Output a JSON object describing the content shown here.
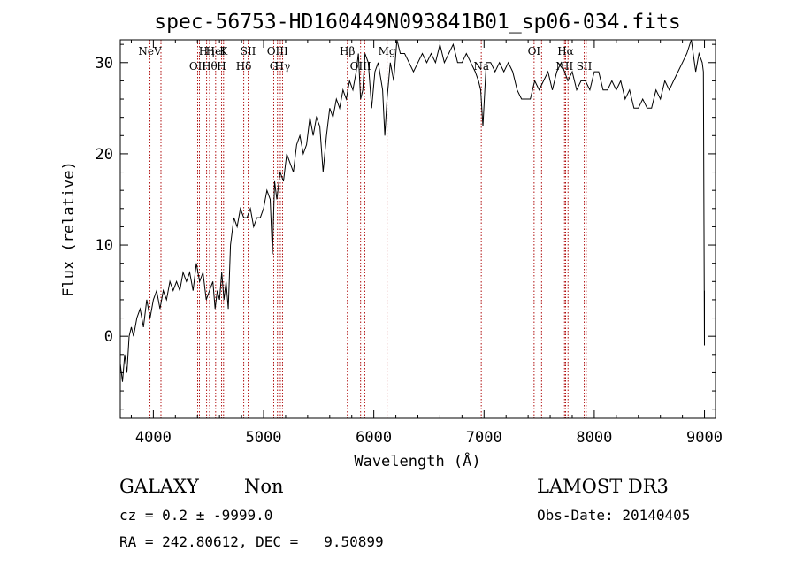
{
  "chart_data": {
    "type": "line",
    "title": "spec-56753-HD160449N093841B01_sp06-034.fits",
    "xlabel": "Wavelength (Å)",
    "ylabel": "Flux (relative)",
    "xlim": [
      3700,
      9100
    ],
    "ylim": [
      -9,
      32.5
    ],
    "x_ticks": [
      4000,
      5000,
      6000,
      7000,
      8000,
      9000
    ],
    "y_ticks": [
      0,
      10,
      20,
      30
    ],
    "grid": false,
    "series": [
      {
        "color": "#000000",
        "x": [
          3700,
          3720,
          3740,
          3760,
          3780,
          3800,
          3820,
          3850,
          3880,
          3910,
          3940,
          3970,
          4000,
          4030,
          4060,
          4090,
          4120,
          4150,
          4180,
          4210,
          4240,
          4270,
          4300,
          4330,
          4360,
          4390,
          4420,
          4450,
          4480,
          4510,
          4540,
          4560,
          4580,
          4600,
          4620,
          4640,
          4660,
          4680,
          4700,
          4710,
          4730,
          4760,
          4790,
          4820,
          4850,
          4880,
          4910,
          4940,
          4970,
          5000,
          5030,
          5060,
          5080,
          5100,
          5120,
          5150,
          5180,
          5210,
          5240,
          5270,
          5300,
          5330,
          5360,
          5390,
          5420,
          5450,
          5480,
          5510,
          5540,
          5570,
          5600,
          5630,
          5660,
          5690,
          5720,
          5750,
          5780,
          5810,
          5840,
          5860,
          5880,
          5900,
          5920,
          5950,
          5980,
          6010,
          6040,
          6080,
          6100,
          6120,
          6150,
          6180,
          6210,
          6240,
          6280,
          6320,
          6360,
          6400,
          6440,
          6480,
          6520,
          6560,
          6600,
          6640,
          6680,
          6720,
          6760,
          6800,
          6840,
          6880,
          6920,
          6950,
          6970,
          6990,
          7020,
          7060,
          7100,
          7140,
          7180,
          7220,
          7260,
          7300,
          7340,
          7380,
          7420,
          7460,
          7500,
          7540,
          7580,
          7620,
          7660,
          7700,
          7730,
          7760,
          7800,
          7840,
          7880,
          7920,
          7960,
          8000,
          8040,
          8080,
          8120,
          8160,
          8200,
          8240,
          8280,
          8320,
          8360,
          8400,
          8440,
          8480,
          8520,
          8560,
          8600,
          8640,
          8680,
          8720,
          8760,
          8800,
          8840,
          8880,
          8920,
          8950,
          8980,
          8990,
          9000,
          9000
        ],
        "values": [
          -3,
          -5,
          -2,
          -4,
          0,
          1,
          0,
          2,
          3,
          1,
          4,
          2,
          4,
          5,
          3,
          5,
          4,
          6,
          5,
          6,
          5,
          7,
          6,
          7,
          5,
          8,
          6,
          7,
          4,
          5,
          6,
          3,
          5,
          4,
          7,
          4,
          6,
          3,
          10,
          11,
          13,
          12,
          14,
          13,
          13,
          14,
          12,
          13,
          13,
          14,
          16,
          15,
          9,
          17,
          15,
          18,
          17,
          20,
          19,
          18,
          21,
          22,
          20,
          21,
          24,
          22,
          24,
          23,
          18,
          22,
          25,
          24,
          26,
          25,
          27,
          26,
          28,
          27,
          29,
          31,
          26,
          27,
          31,
          30,
          25,
          29,
          30,
          27,
          22,
          26,
          30,
          28,
          33,
          31,
          31,
          30,
          29,
          30,
          31,
          30,
          31,
          30,
          32,
          30,
          31,
          32,
          30,
          30,
          31,
          30,
          29,
          28,
          27,
          23,
          30,
          30,
          29,
          30,
          29,
          30,
          29,
          27,
          26,
          26,
          26,
          28,
          27,
          28,
          29,
          27,
          29,
          30,
          29,
          28,
          29,
          27,
          28,
          28,
          27,
          29,
          29,
          27,
          27,
          28,
          27,
          28,
          26,
          27,
          25,
          25,
          26,
          25,
          25,
          27,
          26,
          28,
          27,
          28,
          29,
          30,
          31,
          33,
          29,
          31,
          30,
          29,
          -1,
          5
        ]
      }
    ],
    "lines": [
      {
        "label": "NeV",
        "x": [
          3969,
          4069
        ]
      },
      {
        "label": "OII",
        "x": [
          4402,
          4418
        ]
      },
      {
        "label": "Hη",
        "x": [
          4483
        ]
      },
      {
        "label": "Hθ",
        "x": [
          4510
        ]
      },
      {
        "label": "HeI",
        "x": [
          4565
        ]
      },
      {
        "label": "H",
        "x": [
          4619
        ]
      },
      {
        "label": "K",
        "x": [
          4637
        ]
      },
      {
        "label": "Hδ",
        "x": [
          4820
        ]
      },
      {
        "label": "SII",
        "x": [
          4860
        ]
      },
      {
        "label": "G",
        "x": [
          5092
        ]
      },
      {
        "label": "OIII",
        "x": [
          5126,
          5152
        ]
      },
      {
        "label": "Hγ",
        "x": [
          5172
        ]
      },
      {
        "label": "Hβ",
        "x": [
          5760
        ]
      },
      {
        "label": "OIII",
        "x": [
          5880,
          5918
        ]
      },
      {
        "label": "Mg",
        "x": [
          6120
        ]
      },
      {
        "label": "Na",
        "x": [
          6975
        ]
      },
      {
        "label": "OI",
        "x": [
          7454,
          7522
        ]
      },
      {
        "label": "NII",
        "x": [
          7730,
          7762
        ]
      },
      {
        "label": "Hα",
        "x": [
          7740
        ]
      },
      {
        "label": "SII",
        "x": [
          7909,
          7927
        ]
      }
    ]
  },
  "info": {
    "object_type": "GALAXY",
    "subclass": "Non",
    "survey": "LAMOST DR3",
    "cz": "cz = 0.2 ± -9999.0",
    "obs_date": "Obs-Date: 20140405",
    "coords": "RA = 242.80612, DEC =   9.50899"
  }
}
